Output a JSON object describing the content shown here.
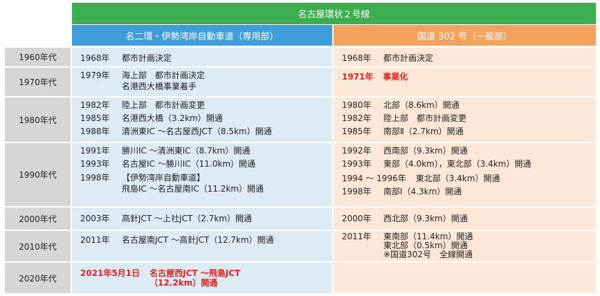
{
  "header": {
    "title": "名古屋環状２号線",
    "left_title": "名二環・伊勢湾岸自動車道（専用部）",
    "right_title": "国道 302 号（一般部）"
  },
  "rows": [
    {
      "era": "1960年代",
      "left": [
        {
          "year": "1968年",
          "lines": [
            "都市計画決定"
          ]
        }
      ],
      "right": [
        {
          "year": "1968年",
          "lines": [
            "都市計画決定"
          ]
        }
      ]
    },
    {
      "era": "1970年代",
      "left": [
        {
          "year": "1979年",
          "lines": [
            "海上部　都市計画決定",
            "名港西大橋事業着手"
          ]
        }
      ],
      "right": [
        {
          "year": "1971年",
          "lines": [
            "事業化"
          ],
          "highlight": true
        }
      ]
    },
    {
      "era": "1980年代",
      "left": [
        {
          "year": "1982年",
          "lines": [
            "陸上部　都市計画変更"
          ]
        },
        {
          "year": "1985年",
          "lines": [
            "名港西大橋（3.2km）開通"
          ]
        },
        {
          "year": "1988年",
          "lines": [
            "清洲東IC ～名古屋西JCT（8.5km）開通"
          ]
        }
      ],
      "right": [
        {
          "year": "1980年",
          "lines": [
            "北部（8.6km）開通"
          ]
        },
        {
          "year": "1982年",
          "lines": [
            "陸上部　都市計画変更"
          ]
        },
        {
          "year": "1985年",
          "lines": [
            "南部Ⅱ（2.7km）開通"
          ]
        }
      ]
    },
    {
      "era": "1990年代",
      "left": [
        {
          "year": "1991年",
          "lines": [
            "勝川IC ～清洲東IC（8.7km）開通"
          ]
        },
        {
          "year": "1993年",
          "lines": [
            "名古屋IC ～勝川IC（11.0km）開通"
          ]
        },
        {
          "year": "1998年",
          "lines": [
            "【伊勢湾岸自動車道】",
            "飛島IC ～名古屋南IC（11.2km）開通"
          ]
        }
      ],
      "right": [
        {
          "year": "1992年",
          "lines": [
            "西南部（9.3km）開通"
          ]
        },
        {
          "year": "1993年",
          "lines": [
            "東部（4.0km），東北部（3.4km）開通"
          ]
        },
        {
          "year": "1994 ～ 1996年",
          "lines": [
            "東北部（3.4km）開通"
          ]
        },
        {
          "year": "1998年",
          "lines": [
            "南部Ⅰ（4.3km）開通"
          ]
        }
      ]
    },
    {
      "era": "2000年代",
      "left": [
        {
          "year": "2003年",
          "lines": [
            "高針JCT ～上社JCT（2.7km）開通"
          ]
        }
      ],
      "right": [
        {
          "year": "2000年",
          "lines": [
            "西北部（9.3km）開通"
          ]
        }
      ]
    },
    {
      "era": "2010年代",
      "left": [
        {
          "year": "2011年",
          "lines": [
            "名古屋南JCT ～高針JCT（12.7km）開通"
          ]
        }
      ],
      "right": [
        {
          "year": "2011年",
          "lines": [
            "東南部（11.4km）開通",
            "東北部（0.5km）開通",
            "※国道302号　全線開通"
          ]
        }
      ]
    },
    {
      "era": "2020年代",
      "left": [
        {
          "year": "2021年5月1日",
          "lines": [
            "名古屋西JCT ～飛島JCT",
            "（12.2km）開通"
          ],
          "highlight": true
        }
      ],
      "right": []
    }
  ]
}
